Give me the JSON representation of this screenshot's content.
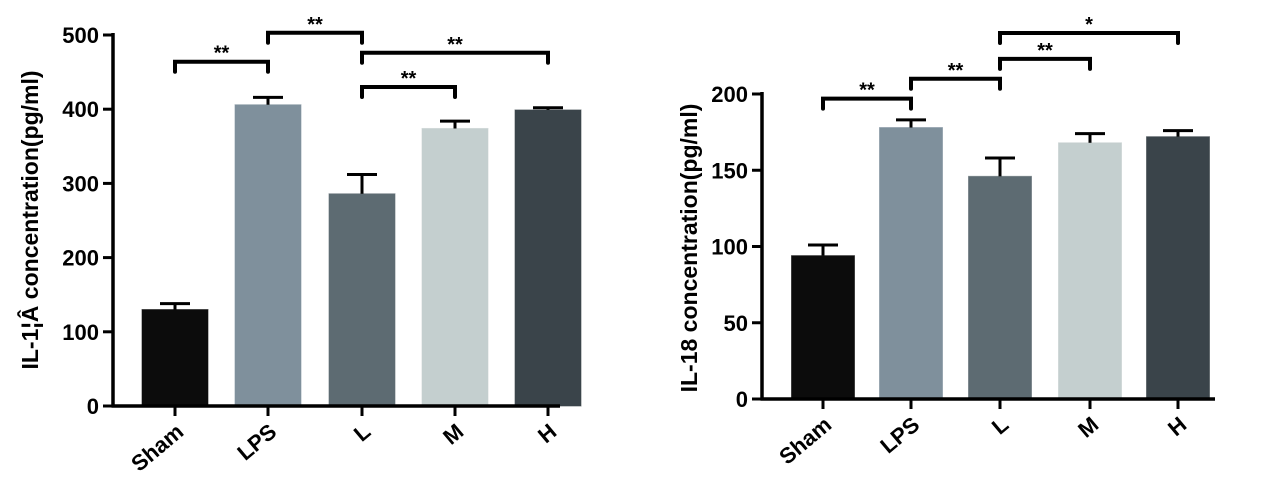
{
  "chart_data": [
    {
      "type": "bar",
      "ylabel": "IL-1¦Â concentration(pg/ml)",
      "xlabel": "",
      "ylim": [
        0,
        500
      ],
      "yticks": [
        0,
        100,
        200,
        300,
        400,
        500
      ],
      "categories": [
        "Sham",
        "LPS",
        "L",
        "M",
        "H"
      ],
      "values": [
        130,
        406,
        286,
        374,
        399
      ],
      "errors": [
        8,
        10,
        26,
        10,
        3
      ],
      "colors": [
        "#0c0c0c",
        "#7f909c",
        "#5d6b72",
        "#c4cfcf",
        "#3a444a"
      ],
      "significance": [
        {
          "from": 0,
          "to": 1,
          "level": 464,
          "label": "**"
        },
        {
          "from": 1,
          "to": 2,
          "level": 503,
          "label": "**"
        },
        {
          "from": 2,
          "to": 4,
          "level": 476,
          "label": "**"
        },
        {
          "from": 2,
          "to": 3,
          "level": 430,
          "label": "**"
        }
      ]
    },
    {
      "type": "bar",
      "ylabel": "IL-18 concentration(pg/ml)",
      "xlabel": "",
      "ylim": [
        0,
        200
      ],
      "yticks": [
        0,
        50,
        100,
        150,
        200
      ],
      "categories": [
        "Sham",
        "LPS",
        "L",
        "M",
        "H"
      ],
      "values": [
        94,
        178,
        146,
        168,
        172
      ],
      "errors": [
        7,
        5,
        12,
        6,
        4
      ],
      "colors": [
        "#0c0c0c",
        "#7f909c",
        "#5d6b72",
        "#c4cfcf",
        "#3a444a"
      ],
      "significance": [
        {
          "from": 0,
          "to": 1,
          "level": 197,
          "label": "**"
        },
        {
          "from": 1,
          "to": 2,
          "level": 210,
          "label": "**"
        },
        {
          "from": 2,
          "to": 3,
          "level": 223,
          "label": "**"
        },
        {
          "from": 2,
          "to": 4,
          "level": 240,
          "label": "*"
        }
      ]
    }
  ]
}
